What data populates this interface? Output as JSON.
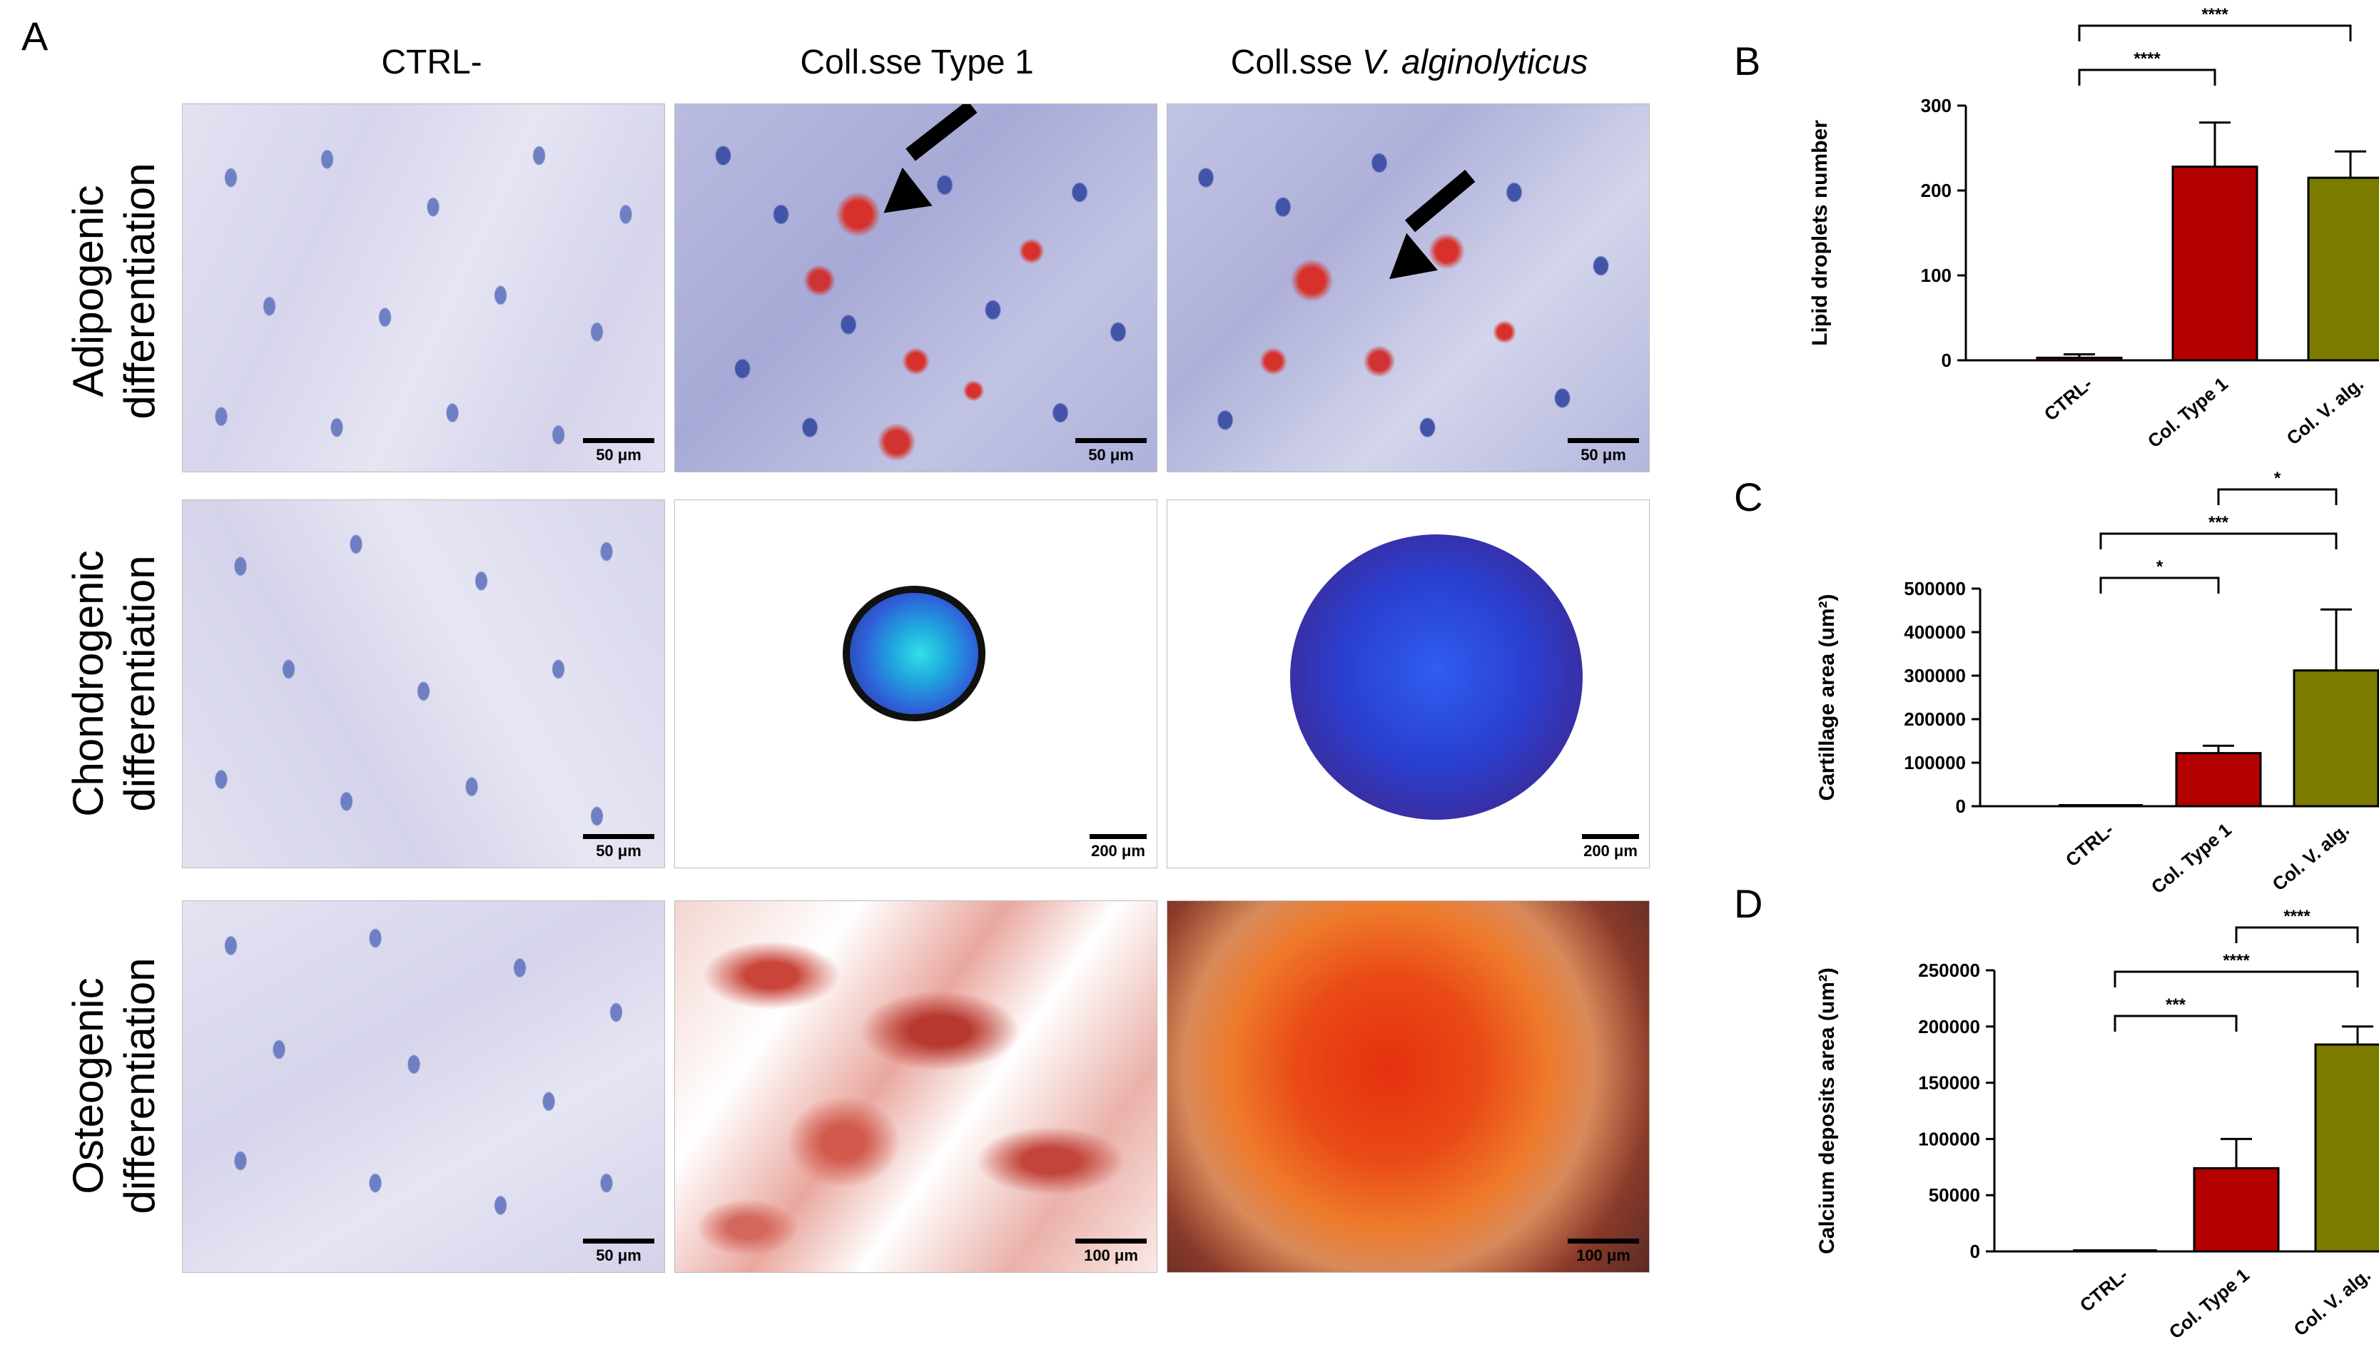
{
  "panel_a": {
    "letter": "A",
    "columns": [
      "CTRL-",
      "Coll.sse Type 1",
      "Coll.sse"
    ],
    "column3_italic": "V. alginolyticus",
    "rows": [
      {
        "line1": "Adipogenic",
        "line2": "differentiation"
      },
      {
        "line1": "Chondrogenic",
        "line2": "differentiation"
      },
      {
        "line1": "Osteogenic",
        "line2": "differentiation"
      }
    ],
    "scale_bars": [
      [
        "50 μm",
        "50 μm",
        "50 μm"
      ],
      [
        "50 μm",
        "200 μm",
        "200 μm"
      ],
      [
        "50 μm",
        "100 μm",
        "100 μm"
      ]
    ],
    "colors": {
      "ctrl_bg": "#dcdbee",
      "nucleus": "#6f7fc4",
      "lipid": "#d8312b",
      "alcian": "#2f5fd8",
      "alizarin": "#e23b1f"
    }
  },
  "chart_data": [
    {
      "type": "bar",
      "letter": "B",
      "categories": [
        "CTRL-",
        "Col. Type 1",
        "Col. V. alg."
      ],
      "values": [
        3,
        228,
        215
      ],
      "errors": [
        4,
        52,
        31
      ],
      "colors": [
        "#b30000",
        "#b30000",
        "#7b7b00"
      ],
      "ylabel": "Lipid droplets number",
      "ylim": [
        0,
        300
      ],
      "yticks": [
        "0",
        "100",
        "200",
        "300"
      ],
      "significance": [
        {
          "from": 0,
          "to": 1,
          "label": "****"
        },
        {
          "from": 0,
          "to": 2,
          "label": "****"
        }
      ]
    },
    {
      "type": "bar",
      "letter": "C",
      "categories": [
        "CTRL-",
        "Col. Type 1",
        "Col. V. alg."
      ],
      "values": [
        0,
        122000,
        312000
      ],
      "errors": [
        0,
        17000,
        140000
      ],
      "colors": [
        "#b30000",
        "#b30000",
        "#7b7b00"
      ],
      "ylabel": "Cartillage area (um²)",
      "ylim": [
        0,
        500000
      ],
      "yticks": [
        "0",
        "100000",
        "200000",
        "300000",
        "400000",
        "500000"
      ],
      "significance": [
        {
          "from": 0,
          "to": 1,
          "label": "*"
        },
        {
          "from": 0,
          "to": 2,
          "label": "***"
        },
        {
          "from": 1,
          "to": 2,
          "label": "*"
        }
      ]
    },
    {
      "type": "bar",
      "letter": "D",
      "categories": [
        "CTRL-",
        "Col. Type 1",
        "Col. V. alg."
      ],
      "values": [
        0,
        74000,
        184000
      ],
      "errors": [
        0,
        26000,
        16000
      ],
      "colors": [
        "#b30000",
        "#b30000",
        "#7b7b00"
      ],
      "ylabel": "Calcium deposits area (um²)",
      "ylim": [
        0,
        250000
      ],
      "yticks": [
        "0",
        "50000",
        "100000",
        "150000",
        "200000",
        "250000"
      ],
      "significance": [
        {
          "from": 0,
          "to": 1,
          "label": "***"
        },
        {
          "from": 0,
          "to": 2,
          "label": "****"
        },
        {
          "from": 1,
          "to": 2,
          "label": "****"
        }
      ]
    }
  ]
}
